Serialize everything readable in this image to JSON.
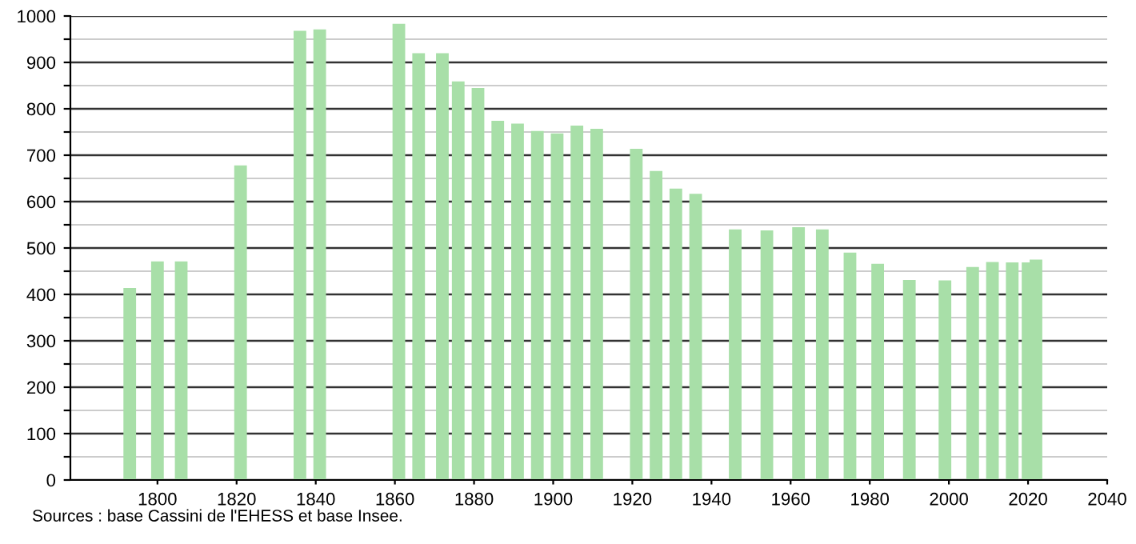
{
  "chart_data": {
    "type": "bar",
    "x": [
      1793,
      1800,
      1806,
      1821,
      1836,
      1841,
      1861,
      1866,
      1872,
      1876,
      1881,
      1886,
      1891,
      1896,
      1901,
      1906,
      1911,
      1921,
      1926,
      1931,
      1936,
      1946,
      1954,
      1962,
      1968,
      1975,
      1982,
      1990,
      1999,
      2006,
      2011,
      2016,
      2020,
      2022
    ],
    "values": [
      414,
      471,
      471,
      678,
      968,
      971,
      983,
      920,
      920,
      859,
      845,
      774,
      768,
      752,
      747,
      764,
      757,
      714,
      666,
      628,
      617,
      540,
      538,
      545,
      540,
      490,
      466,
      431,
      430,
      459,
      470,
      469,
      469,
      475
    ],
    "color": "#a8dfa8",
    "xlim": [
      1778,
      2040
    ],
    "xticks": [
      1800,
      1820,
      1840,
      1860,
      1880,
      1900,
      1920,
      1940,
      1960,
      1980,
      2000,
      2020,
      2040
    ],
    "ylim": [
      0,
      1000
    ],
    "yticks": [
      0,
      {
        "value": 50,
        "label": null
      },
      100,
      {
        "value": 150,
        "label": null
      },
      200,
      {
        "value": 250,
        "label": null
      },
      300,
      {
        "value": 350,
        "label": null
      },
      400,
      {
        "value": 450,
        "label": null
      },
      500,
      {
        "value": 550,
        "label": null
      },
      600,
      {
        "value": 650,
        "label": null
      },
      700,
      {
        "value": 750,
        "label": null
      },
      800,
      {
        "value": 850,
        "label": null
      },
      900,
      {
        "value": 950,
        "label": null
      },
      1000
    ],
    "grid": "y",
    "annotations": [
      "Sources : base Cassini de l'EHESS et base Insee."
    ]
  }
}
